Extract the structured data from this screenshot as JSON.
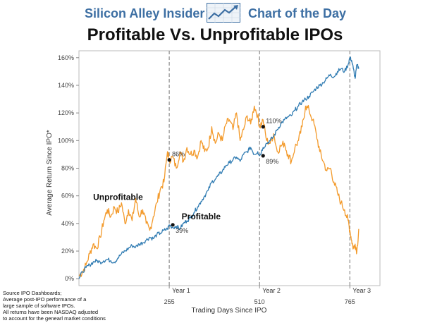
{
  "header": {
    "brand": "Silicon Alley Insider",
    "tagline": "Chart of the Day",
    "logo_icon": "trend-chart-icon"
  },
  "footnote": [
    "Source IPO Dashboards;",
    "Average post-IPO performance of a",
    "large sample of software IPOs.",
    "All returns have been NASDAQ adjusted",
    "to account for the genearl market conditions"
  ],
  "chart_data": {
    "type": "line",
    "title": "Profitable Vs. Unprofitable IPOs",
    "xlabel": "Trading Days Since IPO",
    "ylabel": "Average Return Since IPO*",
    "xlim": [
      0,
      850
    ],
    "ylim": [
      -5,
      165
    ],
    "x_ticks": [
      "255",
      "510",
      "765"
    ],
    "y_ticks": [
      "0%",
      "20%",
      "40%",
      "60%",
      "80%",
      "100%",
      "120%",
      "140%",
      "160%"
    ],
    "vlines": [
      {
        "x": 255,
        "label": "Year 1"
      },
      {
        "x": 510,
        "label": "Year 2"
      },
      {
        "x": 765,
        "label": "Year 3"
      }
    ],
    "series": [
      {
        "name": "Unprofitable",
        "color": "#f39a2b",
        "x": [
          0,
          10,
          20,
          30,
          40,
          50,
          60,
          70,
          80,
          90,
          100,
          110,
          120,
          130,
          140,
          150,
          160,
          170,
          180,
          190,
          200,
          210,
          220,
          230,
          240,
          250,
          255,
          265,
          275,
          285,
          295,
          305,
          315,
          325,
          335,
          345,
          355,
          365,
          375,
          385,
          395,
          405,
          415,
          425,
          435,
          445,
          455,
          465,
          475,
          485,
          495,
          505,
          510,
          520,
          530,
          540,
          550,
          560,
          570,
          580,
          590,
          600,
          610,
          620,
          630,
          640,
          650,
          660,
          670,
          680,
          690,
          700,
          710,
          720,
          730,
          740,
          750,
          760,
          765,
          770,
          775,
          780,
          785,
          790
        ],
        "values": [
          2,
          5,
          10,
          18,
          25,
          22,
          30,
          42,
          50,
          45,
          52,
          48,
          55,
          40,
          50,
          42,
          58,
          45,
          50,
          40,
          35,
          45,
          55,
          65,
          70,
          92,
          86,
          88,
          80,
          92,
          85,
          95,
          90,
          93,
          88,
          100,
          92,
          95,
          110,
          98,
          105,
          100,
          112,
          115,
          108,
          120,
          100,
          108,
          118,
          112,
          125,
          118,
          110,
          115,
          100,
          98,
          105,
          92,
          96,
          98,
          90,
          85,
          95,
          100,
          110,
          125,
          122,
          115,
          105,
          92,
          85,
          78,
          80,
          70,
          62,
          55,
          50,
          42,
          35,
          28,
          22,
          25,
          20,
          36
        ]
      },
      {
        "name": "Profitable",
        "color": "#2f7bb2",
        "x": [
          0,
          10,
          20,
          30,
          40,
          50,
          60,
          70,
          80,
          90,
          100,
          110,
          120,
          130,
          140,
          150,
          160,
          170,
          180,
          190,
          200,
          210,
          220,
          230,
          240,
          250,
          255,
          265,
          275,
          285,
          295,
          305,
          315,
          325,
          335,
          345,
          355,
          365,
          375,
          385,
          395,
          405,
          415,
          425,
          435,
          445,
          455,
          465,
          475,
          485,
          495,
          505,
          510,
          520,
          530,
          540,
          550,
          560,
          570,
          580,
          590,
          600,
          610,
          620,
          630,
          640,
          650,
          660,
          670,
          680,
          690,
          700,
          710,
          720,
          730,
          740,
          750,
          760,
          765,
          770,
          775,
          780,
          785,
          790
        ],
        "values": [
          0,
          5,
          8,
          10,
          12,
          13,
          12,
          13,
          14,
          13,
          12,
          15,
          18,
          20,
          22,
          24,
          23,
          25,
          26,
          28,
          30,
          29,
          32,
          33,
          35,
          36,
          39,
          37,
          38,
          36,
          40,
          42,
          44,
          48,
          52,
          56,
          60,
          64,
          70,
          72,
          75,
          78,
          82,
          84,
          86,
          88,
          85,
          90,
          92,
          95,
          90,
          92,
          89,
          95,
          98,
          100,
          103,
          108,
          112,
          115,
          117,
          118,
          122,
          125,
          128,
          130,
          132,
          135,
          138,
          140,
          142,
          145,
          148,
          146,
          150,
          152,
          150,
          155,
          160,
          158,
          152,
          145,
          155,
          152
        ]
      }
    ],
    "series_label_positions": [
      {
        "name": "Unprofitable",
        "x": 40,
        "y": 57
      },
      {
        "name": "Profitable",
        "x": 290,
        "y": 43
      }
    ],
    "annotations": [
      {
        "label": "86%",
        "x": 255,
        "y": 86
      },
      {
        "label": "39%",
        "x": 265,
        "y": 39
      },
      {
        "label": "110%",
        "x": 520,
        "y": 110
      },
      {
        "label": "89%",
        "x": 520,
        "y": 89
      }
    ],
    "grid": false
  }
}
